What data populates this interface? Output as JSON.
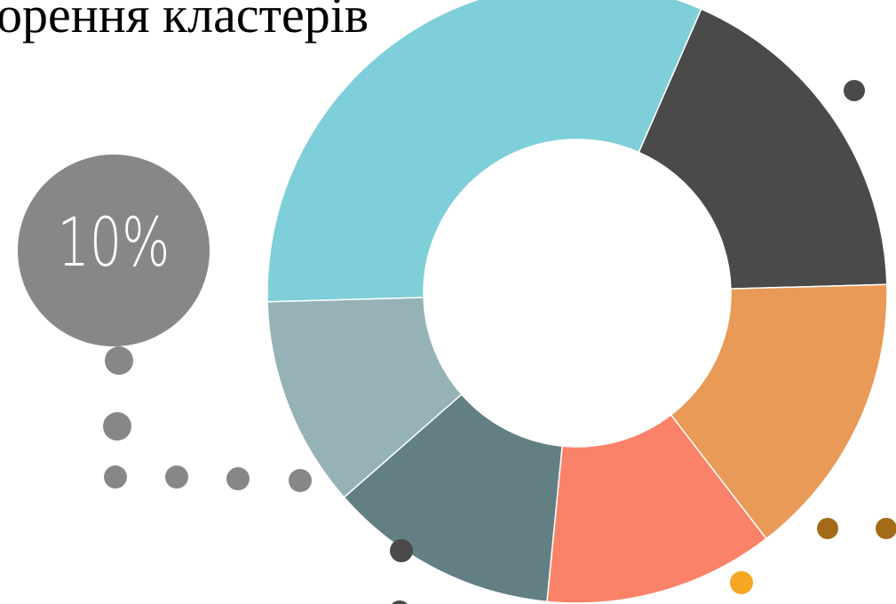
{
  "chart_data": {
    "type": "pie",
    "donut": true,
    "title": "орення кластерів",
    "annotation": "10%",
    "values": [
      18,
      15,
      12,
      12,
      11,
      32
    ],
    "colors": [
      "#4a4a4a",
      "#e99a56",
      "#fa8268",
      "#627f84",
      "#95b2b7",
      "#7ecfd9"
    ]
  }
}
